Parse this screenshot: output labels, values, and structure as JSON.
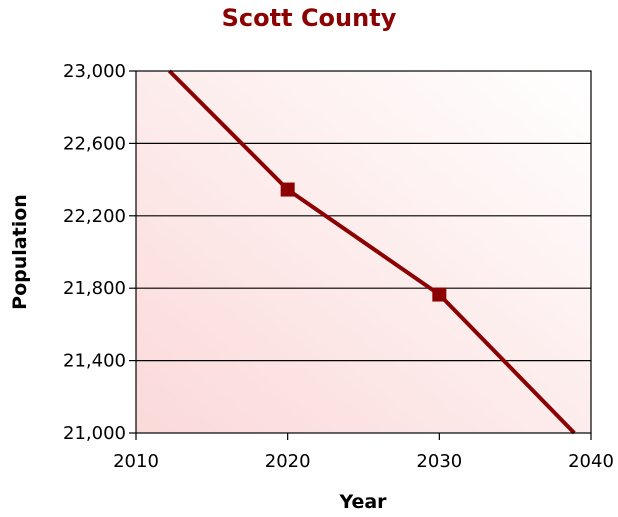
{
  "chart_data": {
    "type": "line",
    "title": "Scott County",
    "xlabel": "Year",
    "ylabel": "Population",
    "xlim": [
      2010,
      2040
    ],
    "ylim": [
      21000,
      23000
    ],
    "x_ticks": [
      2010,
      2020,
      2030,
      2040
    ],
    "x_tick_labels": [
      "2010",
      "2020",
      "2030",
      "2040"
    ],
    "y_ticks": [
      21000,
      21400,
      21800,
      22200,
      22600,
      23000
    ],
    "y_tick_labels": [
      "21,000",
      "21,400",
      "21,800",
      "22,200",
      "22,600",
      "23,000"
    ],
    "grid": "horizontal",
    "series": [
      {
        "color": "#8b0000",
        "x": [
          2012.2,
          2020,
          2030,
          2038.9
        ],
        "y": [
          23000,
          22345,
          21765,
          21000
        ],
        "markers_at": [
          2020,
          2030
        ]
      }
    ],
    "colors": {
      "line": "#8b0000",
      "title": "#8b0000",
      "plot_bg_light": "#ffffff",
      "plot_bg_tint": "#fbd9d9"
    }
  }
}
